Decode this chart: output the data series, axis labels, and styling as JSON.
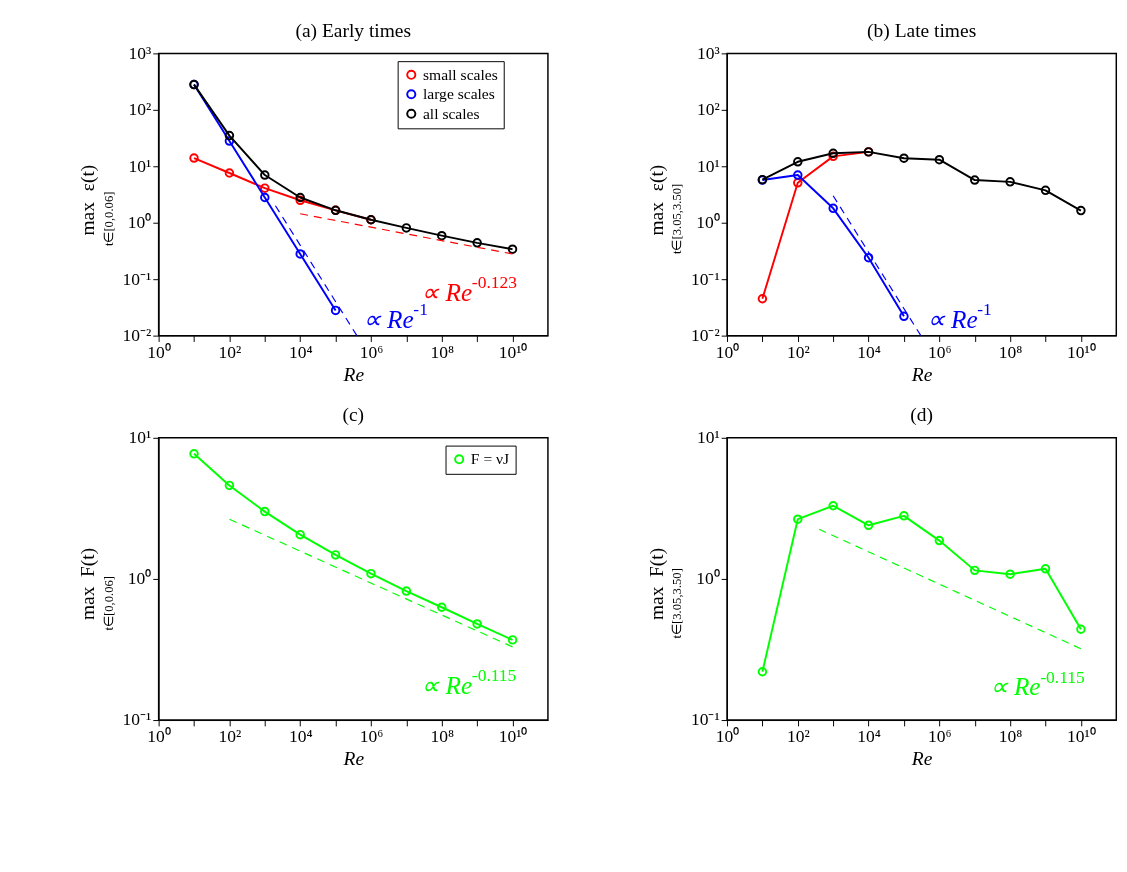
{
  "chart_data": [
    {
      "type": "line",
      "title": "(a) Early times",
      "xlabel": "Re",
      "ylabel": "max$_{t∈[0,0.06]}$ ε(t)",
      "log": "xy",
      "marker": "circle",
      "legend": "top right",
      "xlim": [
        1,
        100000000000.0
      ],
      "ylim": [
        0.01,
        1000
      ],
      "xticks": [
        {
          "value": 1,
          "label": "10⁰"
        },
        {
          "value": 10,
          "label": null
        },
        {
          "value": 100,
          "label": "10²"
        },
        {
          "value": 1000,
          "label": null
        },
        {
          "value": 10000,
          "label": "10⁴"
        },
        {
          "value": 100000,
          "label": null
        },
        {
          "value": 1000000,
          "label": "10⁶"
        },
        {
          "value": 10000000,
          "label": null
        },
        {
          "value": 100000000,
          "label": "10⁸"
        },
        {
          "value": 1000000000,
          "label": null
        },
        {
          "value": 10000000000,
          "label": "10¹⁰"
        }
      ],
      "yticks": [
        {
          "value": 0.01,
          "label": "10⁻²"
        },
        {
          "value": 0.1,
          "label": "10⁻¹"
        },
        {
          "value": 1,
          "label": "10⁰"
        },
        {
          "value": 10,
          "label": "10¹"
        },
        {
          "value": 100,
          "label": "10²"
        },
        {
          "value": 1000,
          "label": "10³"
        }
      ],
      "x": [
        10,
        100,
        1000,
        10000,
        100000,
        1000000,
        10000000,
        100000000,
        1000000000,
        10000000000
      ],
      "series": [
        {
          "name": "small scales",
          "color": "#ff0000",
          "values": [
            14,
            7.6,
            4.1,
            2.5,
            1.66,
            1.13,
            null,
            null,
            null,
            null
          ]
        },
        {
          "name": "large scales",
          "color": "#0000ff",
          "values": [
            280,
            28,
            2.8,
            0.28,
            0.028,
            null,
            null,
            null,
            null,
            null
          ]
        },
        {
          "name": "all scales",
          "color": "#000000",
          "values": [
            280,
            35,
            7.0,
            2.8,
            1.66,
            1.13,
            0.81,
            0.59,
            0.44,
            0.34
          ]
        },
        {
          "type": "line",
          "color": "#ff0000",
          "line_style": "dashed",
          "marker": "none",
          "x": [
            10000,
            10000000000
          ],
          "values": [
            1.44,
            0.28
          ]
        },
        {
          "type": "line",
          "color": "#0000ff",
          "line_style": "dashed",
          "marker": "none",
          "x": [
            2000,
            400000
          ],
          "values": [
            2,
            0.01
          ]
        }
      ],
      "annotations": [
        "∝ Re$^{-0.123}$",
        "∝ Re$^{-1}$"
      ]
    },
    {
      "type": "line",
      "title": "(b) Late times",
      "xlabel": "Re",
      "ylabel": "max$_{t∈[3.05,3.50]}$ ε(t)",
      "log": "xy",
      "marker": "circle",
      "xlim": [
        1,
        100000000000.0
      ],
      "ylim": [
        0.01,
        1000
      ],
      "xticks": [
        {
          "value": 1,
          "label": "10⁰"
        },
        {
          "value": 10,
          "label": null
        },
        {
          "value": 100,
          "label": "10²"
        },
        {
          "value": 1000,
          "label": null
        },
        {
          "value": 10000,
          "label": "10⁴"
        },
        {
          "value": 100000,
          "label": null
        },
        {
          "value": 1000000,
          "label": "10⁶"
        },
        {
          "value": 10000000,
          "label": null
        },
        {
          "value": 100000000,
          "label": "10⁸"
        },
        {
          "value": 1000000000,
          "label": null
        },
        {
          "value": 10000000000,
          "label": "10¹⁰"
        }
      ],
      "yticks": [
        {
          "value": 0.01,
          "label": "10⁻²"
        },
        {
          "value": 0.1,
          "label": "10⁻¹"
        },
        {
          "value": 1,
          "label": "10⁰"
        },
        {
          "value": 10,
          "label": "10¹"
        },
        {
          "value": 100,
          "label": "10²"
        },
        {
          "value": 1000,
          "label": "10³"
        }
      ],
      "x": [
        10,
        100,
        1000,
        10000,
        100000,
        1000000,
        10000000,
        100000000,
        1000000000,
        10000000000
      ],
      "series": [
        {
          "color": "#ff0000",
          "values": [
            0.045,
            5.1,
            15,
            18,
            null,
            null,
            null,
            null,
            null,
            null
          ]
        },
        {
          "color": "#0000ff",
          "values": [
            5.7,
            7.0,
            1.8,
            0.24,
            0.022,
            null,
            null,
            null,
            null,
            null
          ]
        },
        {
          "color": "#000000",
          "values": [
            5.8,
            12,
            17,
            18,
            13.9,
            13.1,
            5.7,
            5.3,
            3.75,
            1.64
          ]
        },
        {
          "type": "line",
          "color": "#0000ff",
          "line_style": "dashed",
          "marker": "none",
          "x": [
            1000,
            300000
          ],
          "values": [
            3,
            0.01
          ]
        }
      ],
      "annotations": [
        "∝ Re$^{-1}$"
      ]
    },
    {
      "type": "line",
      "title": "(c)",
      "xlabel": "Re",
      "ylabel": "max$_{t∈[0,0.06]}$ F(t)",
      "log": "xy",
      "marker": "circle",
      "legend": "top right",
      "xlim": [
        1,
        100000000000.0
      ],
      "ylim": [
        0.1,
        10
      ],
      "xticks": [
        {
          "value": 1,
          "label": "10⁰"
        },
        {
          "value": 10,
          "label": null
        },
        {
          "value": 100,
          "label": "10²"
        },
        {
          "value": 1000,
          "label": null
        },
        {
          "value": 10000,
          "label": "10⁴"
        },
        {
          "value": 100000,
          "label": null
        },
        {
          "value": 1000000,
          "label": "10⁶"
        },
        {
          "value": 10000000,
          "label": null
        },
        {
          "value": 100000000,
          "label": "10⁸"
        },
        {
          "value": 1000000000,
          "label": null
        },
        {
          "value": 10000000000,
          "label": "10¹⁰"
        }
      ],
      "yticks": [
        {
          "value": 0.1,
          "label": "10⁻¹"
        },
        {
          "value": 1,
          "label": "10⁰"
        },
        {
          "value": 10,
          "label": "10¹"
        }
      ],
      "x": [
        10,
        100,
        1000,
        10000,
        100000,
        1000000,
        10000000,
        100000000,
        1000000000,
        10000000000
      ],
      "series": [
        {
          "name": "F = νJ",
          "color": "#00ff00",
          "values": [
            7.7,
            4.6,
            3.0,
            2.06,
            1.48,
            1.09,
            0.82,
            0.63,
            0.48,
            0.37
          ]
        },
        {
          "type": "line",
          "color": "#00ff00",
          "line_style": "dashed",
          "marker": "none",
          "x": [
            100,
            10000000000
          ],
          "values": [
            2.65,
            0.33
          ]
        }
      ],
      "annotations": [
        "∝ Re$^{-0.115}$"
      ]
    },
    {
      "type": "line",
      "title": "(d)",
      "xlabel": "Re",
      "ylabel": "max$_{t∈[3.05,3.50]}$ F(t)",
      "log": "xy",
      "marker": "circle",
      "xlim": [
        1,
        100000000000.0
      ],
      "ylim": [
        0.1,
        10
      ],
      "xticks": [
        {
          "value": 1,
          "label": "10⁰"
        },
        {
          "value": 10,
          "label": null
        },
        {
          "value": 100,
          "label": "10²"
        },
        {
          "value": 1000,
          "label": null
        },
        {
          "value": 10000,
          "label": "10⁴"
        },
        {
          "value": 100000,
          "label": null
        },
        {
          "value": 1000000,
          "label": "10⁶"
        },
        {
          "value": 10000000,
          "label": null
        },
        {
          "value": 100000000,
          "label": "10⁸"
        },
        {
          "value": 1000000000,
          "label": null
        },
        {
          "value": 10000000000,
          "label": "10¹⁰"
        }
      ],
      "yticks": [
        {
          "value": 0.1,
          "label": "10⁻¹"
        },
        {
          "value": 1,
          "label": "10⁰"
        },
        {
          "value": 10,
          "label": "10¹"
        }
      ],
      "x": [
        10,
        100,
        1000,
        10000,
        100000,
        1000000,
        10000000,
        100000000,
        1000000000,
        10000000000
      ],
      "series": [
        {
          "color": "#00ff00",
          "values": [
            0.22,
            2.65,
            3.3,
            2.4,
            2.8,
            1.87,
            1.15,
            1.08,
            1.18,
            0.44
          ]
        },
        {
          "type": "line",
          "color": "#00ff00",
          "line_style": "dashed",
          "marker": "none",
          "x": [
            400,
            10000000000
          ],
          "values": [
            2.25,
            0.32
          ]
        }
      ],
      "annotations": [
        "∝ Re$^{-0.115}$"
      ]
    }
  ]
}
